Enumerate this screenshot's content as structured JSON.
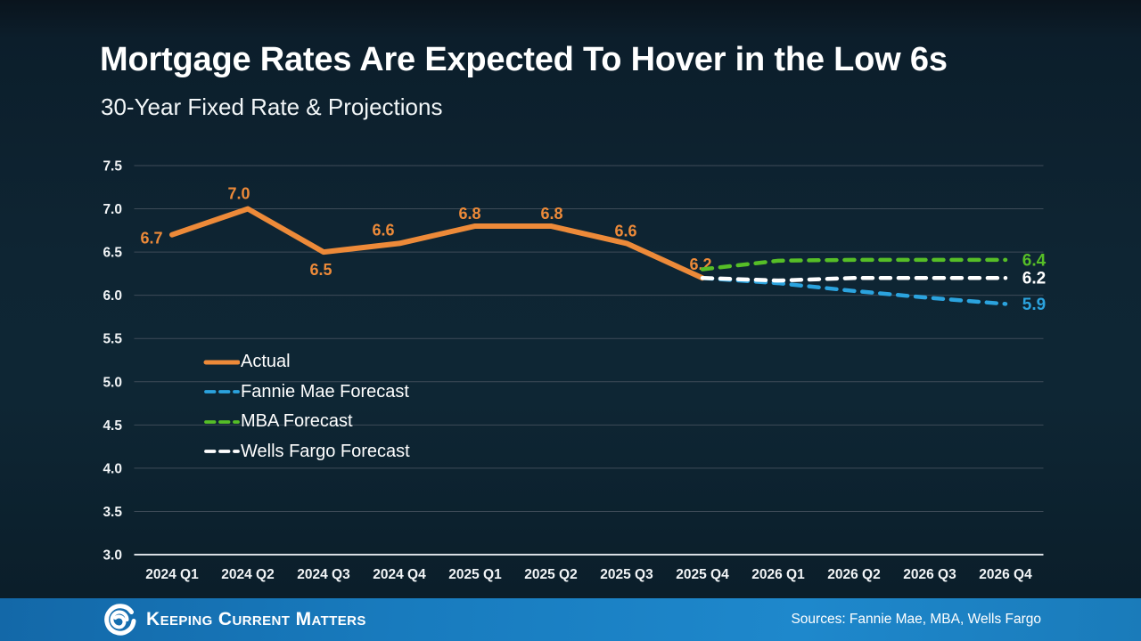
{
  "header": {
    "title": "Mortgage Rates Are Expected To Hover in the Low 6s",
    "subtitle": "30-Year Fixed Rate & Projections"
  },
  "chart_data": {
    "type": "line",
    "title": "Mortgage Rates Are Expected To Hover in the Low 6s",
    "subtitle": "30-Year Fixed Rate & Projections",
    "categories": [
      "2024 Q1",
      "2024 Q2",
      "2024 Q3",
      "2024 Q4",
      "2025 Q1",
      "2025 Q2",
      "2025 Q3",
      "2025 Q4",
      "2026 Q1",
      "2026 Q2",
      "2026 Q3",
      "2026 Q4"
    ],
    "ylim": [
      3.0,
      7.5
    ],
    "yticks": [
      "3.0",
      "3.5",
      "4.0",
      "4.5",
      "5.0",
      "5.5",
      "6.0",
      "6.5",
      "7.0",
      "7.5"
    ],
    "grid": true,
    "legend_position": "inside-left",
    "series": [
      {
        "name": "Actual",
        "color": "#ED8A39",
        "style": "solid",
        "label_points": "all",
        "values": [
          6.7,
          7.0,
          6.5,
          6.6,
          6.8,
          6.8,
          6.6,
          6.2,
          null,
          null,
          null,
          null
        ]
      },
      {
        "name": "Fannie Mae Forecast",
        "color": "#2BA3DE",
        "style": "dashed",
        "label_points": "last",
        "values": [
          null,
          null,
          null,
          null,
          null,
          null,
          null,
          6.2,
          6.14,
          6.05,
          5.97,
          5.9
        ]
      },
      {
        "name": "MBA Forecast",
        "color": "#56BE27",
        "style": "dashed",
        "label_points": "last",
        "values": [
          null,
          null,
          null,
          null,
          null,
          null,
          null,
          6.3,
          6.4,
          6.41,
          6.41,
          6.41
        ]
      },
      {
        "name": "Wells Fargo Forecast",
        "color": "#FFFFFF",
        "style": "dashed",
        "label_points": "last",
        "values": [
          null,
          null,
          null,
          null,
          null,
          null,
          null,
          6.2,
          6.17,
          6.2,
          6.2,
          6.2
        ]
      }
    ]
  },
  "footer": {
    "brand": "Keeping Current Matters",
    "sources": "Sources: Fannie Mae, MBA, Wells Fargo"
  },
  "colors": {
    "background": "#0E2533",
    "gridline": "#3E4B58",
    "axis_line": "#D9DEE3",
    "tick_label": "#F2F5F7",
    "footer_bar": "#1B7FC2"
  }
}
